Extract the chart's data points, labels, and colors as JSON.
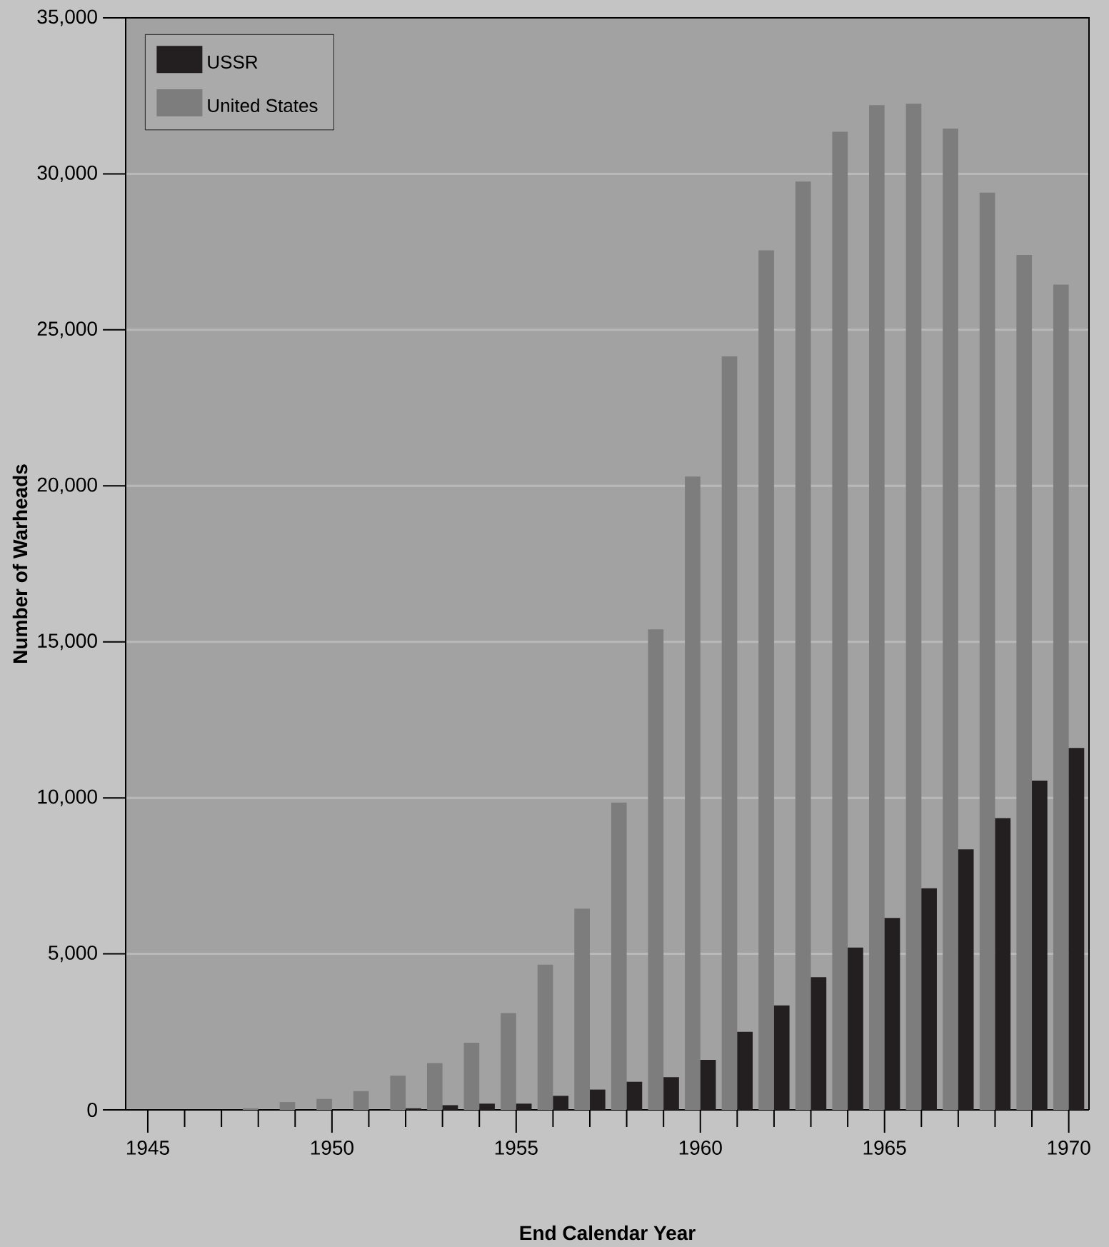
{
  "chart_data": {
    "type": "bar",
    "xlabel": "End Calendar Year",
    "ylabel": "Number of Warheads",
    "x": [
      1945,
      1946,
      1947,
      1948,
      1949,
      1950,
      1951,
      1952,
      1953,
      1954,
      1955,
      1956,
      1957,
      1958,
      1959,
      1960,
      1961,
      1962,
      1963,
      1964,
      1965,
      1966,
      1967,
      1968,
      1969,
      1970
    ],
    "series": [
      {
        "name": "United States",
        "color": "#7d7d7d",
        "values": [
          0,
          0,
          0,
          50,
          250,
          350,
          600,
          1100,
          1500,
          2150,
          3100,
          4650,
          6450,
          9850,
          15400,
          20300,
          24150,
          27550,
          29750,
          31350,
          32200,
          32250,
          31450,
          29400,
          27400,
          26450
        ]
      },
      {
        "name": "USSR",
        "color": "#231f20",
        "values": [
          0,
          0,
          0,
          0,
          0,
          0,
          0,
          50,
          150,
          200,
          200,
          450,
          650,
          900,
          1050,
          1600,
          2500,
          3350,
          4250,
          5200,
          6150,
          7100,
          8350,
          9350,
          10550,
          11600
        ]
      }
    ],
    "xlim": [
      1944.4,
      1970.55
    ],
    "ylim": [
      0,
      35000
    ],
    "xticks": [
      1945,
      1950,
      1955,
      1960,
      1965,
      1970
    ],
    "yticks": [
      {
        "value": 0,
        "label": "0"
      },
      {
        "value": 5000,
        "label": "5,000"
      },
      {
        "value": 10000,
        "label": "10,000"
      },
      {
        "value": 15000,
        "label": "15,000"
      },
      {
        "value": 20000,
        "label": "20,000"
      },
      {
        "value": 25000,
        "label": "25,000"
      },
      {
        "value": 30000,
        "label": "30,000"
      },
      {
        "value": 35000,
        "label": "35,000"
      }
    ],
    "grid": "y",
    "legend": "top left"
  }
}
